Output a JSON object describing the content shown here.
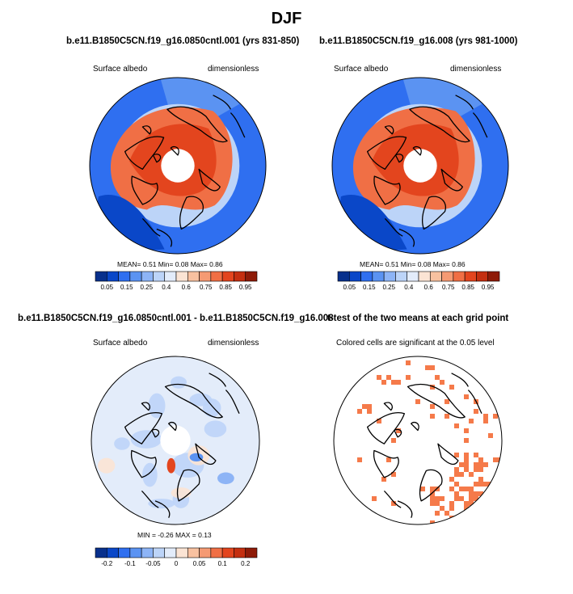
{
  "figure": {
    "title": "DJF"
  },
  "colors": {
    "abs_scale": [
      "#08308c",
      "#0a47c8",
      "#2f6ff0",
      "#5b93f2",
      "#8db4f6",
      "#bcd4f8",
      "#e3ecfa",
      "#fbe4d4",
      "#f8c1a0",
      "#f59a73",
      "#f06f45",
      "#e3451e",
      "#c42f10",
      "#8e1b08"
    ],
    "diff_scale": [
      "#08308c",
      "#0a47c8",
      "#2f6ff0",
      "#5b93f2",
      "#8db4f6",
      "#bcd4f8",
      "#e3ecfa",
      "#fbe4d4",
      "#f8c1a0",
      "#f59a73",
      "#f06f45",
      "#e3451e",
      "#c42f10",
      "#8e1b08"
    ],
    "land_outline": "#000000",
    "significance": "#f57a4a"
  },
  "panels": {
    "control": {
      "title": "b.e11.B1850C5CN.f19_g16.0850cntl.001 (yrs 831-850)",
      "variable": "Surface albedo",
      "units": "dimensionless",
      "stats": "MEAN=  0.51  Min=  0.08  Max=  0.86",
      "colorbar_ticks": [
        "0.05",
        "0.15",
        "0.25",
        "0.4",
        "0.6",
        "0.75",
        "0.85",
        "0.95"
      ]
    },
    "case": {
      "title": "b.e11.B1850C5CN.f19_g16.008 (yrs 981-1000)",
      "variable": "Surface albedo",
      "units": "dimensionless",
      "stats": "MEAN=  0.51  Min=  0.08  Max=  0.86",
      "colorbar_ticks": [
        "0.05",
        "0.15",
        "0.25",
        "0.4",
        "0.6",
        "0.75",
        "0.85",
        "0.95"
      ]
    },
    "difference": {
      "title": "b.e11.B1850C5CN.f19_g16.0850cntl.001 - b.e11.B1850C5CN.f19_g16.008",
      "variable": "Surface albedo",
      "units": "dimensionless",
      "stats": "MIN =  -0.26  MAX =  0.13",
      "colorbar_ticks": [
        "-0.2",
        "-0.1",
        "-0.05",
        "0",
        "0.05",
        "0.1",
        "0.2"
      ]
    },
    "ttest": {
      "title": "t-test of the two means at each grid point",
      "subtitle": "Colored cells are significant at the 0.05 level"
    }
  },
  "chart_data": [
    {
      "type": "heatmap",
      "projection": "north polar stereographic",
      "title": "b.e11.B1850C5CN.f19_g16.0850cntl.001 (yrs 831-850)",
      "variable": "Surface albedo",
      "units": "dimensionless",
      "mean": 0.51,
      "min": 0.08,
      "max": 0.86,
      "contour_levels": [
        0.05,
        0.1,
        0.15,
        0.2,
        0.25,
        0.3,
        0.4,
        0.5,
        0.6,
        0.7,
        0.75,
        0.8,
        0.85,
        0.9,
        0.95
      ]
    },
    {
      "type": "heatmap",
      "projection": "north polar stereographic",
      "title": "b.e11.B1850C5CN.f19_g16.008 (yrs 981-1000)",
      "variable": "Surface albedo",
      "units": "dimensionless",
      "mean": 0.51,
      "min": 0.08,
      "max": 0.86,
      "contour_levels": [
        0.05,
        0.1,
        0.15,
        0.2,
        0.25,
        0.3,
        0.4,
        0.5,
        0.6,
        0.7,
        0.75,
        0.8,
        0.85,
        0.9,
        0.95
      ]
    },
    {
      "type": "heatmap",
      "projection": "north polar stereographic",
      "title": "b.e11.B1850C5CN.f19_g16.0850cntl.001 - b.e11.B1850C5CN.f19_g16.008",
      "variable": "Surface albedo",
      "units": "dimensionless",
      "min": -0.26,
      "max": 0.13,
      "contour_levels": [
        -0.25,
        -0.2,
        -0.15,
        -0.1,
        -0.075,
        -0.05,
        -0.025,
        0,
        0.025,
        0.05,
        0.075,
        0.1,
        0.15,
        0.2,
        0.25
      ]
    },
    {
      "type": "heatmap",
      "projection": "north polar stereographic",
      "title": "t-test of the two means at each grid point",
      "annotation": "Colored cells are significant at the 0.05 level",
      "significance_level": 0.05
    }
  ]
}
